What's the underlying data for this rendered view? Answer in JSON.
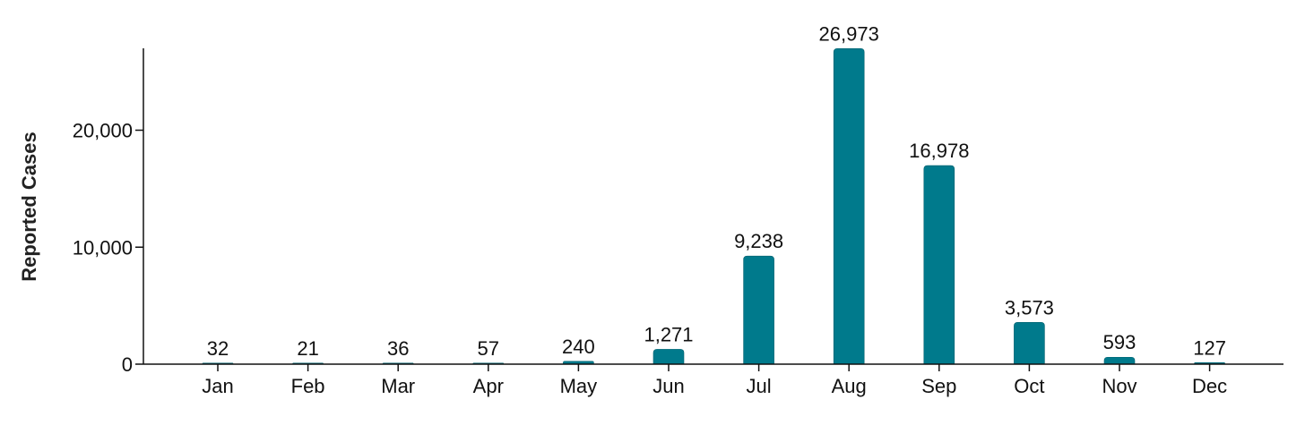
{
  "chart_data": {
    "type": "bar",
    "categories": [
      "Jan",
      "Feb",
      "Mar",
      "Apr",
      "May",
      "Jun",
      "Jul",
      "Aug",
      "Sep",
      "Oct",
      "Nov",
      "Dec"
    ],
    "values": [
      32,
      21,
      36,
      57,
      240,
      1271,
      9238,
      26973,
      16978,
      3573,
      593,
      127
    ],
    "value_labels": [
      "32",
      "21",
      "36",
      "57",
      "240",
      "1,271",
      "9,238",
      "26,973",
      "16,978",
      "3,573",
      "593",
      "127"
    ],
    "title": "",
    "xlabel": "",
    "ylabel": "Reported Cases",
    "ylim": [
      0,
      27000
    ],
    "yticks": [
      0,
      10000,
      20000
    ],
    "ytick_labels": [
      "0",
      "10,000",
      "20,000"
    ],
    "grid": false,
    "legend": "none",
    "bar_color": "#007A8C"
  }
}
